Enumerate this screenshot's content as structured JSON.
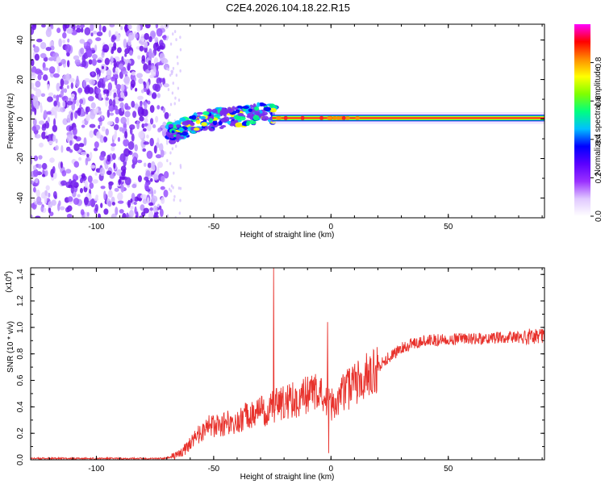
{
  "page_title": "C2E4.2026.104.18.22.R15",
  "chart_data": [
    {
      "type": "heatmap",
      "title": "C2E4.2026.104.18.22.R15",
      "xlabel": "Height of straight line (km)",
      "ylabel": "Frequency (Hz)",
      "xlim": [
        -128,
        91
      ],
      "ylim": [
        -50,
        48
      ],
      "xticks": [
        -100,
        -50,
        0,
        50
      ],
      "xtick_labels": [
        "-100",
        "-50",
        "0",
        "50"
      ],
      "yticks": [
        -40,
        -20,
        0,
        20,
        40
      ],
      "ytick_labels": [
        "-40",
        "-20",
        "0",
        "20",
        "40"
      ],
      "noise_region_x": [
        -128,
        -70
      ],
      "transition_x": [
        -70,
        -25
      ],
      "stable_line_x": [
        -25,
        91
      ],
      "stable_line_freq": 0.5,
      "colorbar": {
        "label": "Normalized spectral amplitude",
        "range": [
          0,
          1
        ],
        "ticks": [
          0.0,
          0.2,
          0.4,
          0.6,
          0.8
        ],
        "tick_labels": [
          "0.0",
          "0.2",
          "0.4",
          "0.6",
          "0.8"
        ],
        "colors": [
          "#ffffff",
          "#e0c8ff",
          "#9a30ff",
          "#5a00ff",
          "#0000ff",
          "#00bfff",
          "#00ff80",
          "#7fff00",
          "#ffff00",
          "#ff8c00",
          "#ff0000",
          "#ff00ff"
        ]
      }
    },
    {
      "type": "line",
      "xlabel": "Height of straight line (km)",
      "ylabel": "SNR (10 * v/v)",
      "y_scale_label_base": "(x10",
      "y_scale_label_exp": "4",
      "y_scale_label_close": ")",
      "xlim": [
        -128,
        91
      ],
      "ylim": [
        0,
        1.45
      ],
      "xticks": [
        -100,
        -50,
        0,
        50
      ],
      "xtick_labels": [
        "-100",
        "-50",
        "0",
        "50"
      ],
      "yticks": [
        0.0,
        0.2,
        0.4,
        0.6,
        0.8,
        1.0,
        1.2,
        1.4
      ],
      "ytick_labels": [
        "0.0",
        "0.2",
        "0.4",
        "0.6",
        "0.8",
        "1.0",
        "1.2",
        "1.4"
      ],
      "color": "#e8322c",
      "series": [
        {
          "name": "SNR",
          "x": [
            -128,
            -120,
            -110,
            -100,
            -90,
            -80,
            -72,
            -68,
            -64,
            -60,
            -56,
            -52,
            -48,
            -44,
            -40,
            -36,
            -32,
            -28,
            -25,
            -22,
            -18,
            -14,
            -10,
            -6,
            -2,
            0,
            2,
            6,
            10,
            15,
            20,
            25,
            30,
            35,
            40,
            50,
            60,
            70,
            80,
            85,
            88,
            91
          ],
          "y": [
            0.01,
            0.01,
            0.01,
            0.01,
            0.01,
            0.01,
            0.01,
            0.02,
            0.05,
            0.12,
            0.2,
            0.25,
            0.26,
            0.28,
            0.3,
            0.33,
            0.36,
            0.37,
            0.4,
            0.42,
            0.45,
            0.46,
            0.5,
            0.5,
            0.45,
            0.4,
            0.46,
            0.52,
            0.56,
            0.63,
            0.7,
            0.78,
            0.84,
            0.88,
            0.9,
            0.91,
            0.91,
            0.92,
            0.93,
            0.93,
            0.94,
            0.94
          ]
        }
      ],
      "annotations": [
        {
          "x": -24.5,
          "y": 1.45,
          "text": "spike"
        },
        {
          "x": -1.5,
          "y": 1.04,
          "text": "spike"
        },
        {
          "x": -1.0,
          "y": 0.05,
          "text": "dip"
        }
      ]
    }
  ]
}
